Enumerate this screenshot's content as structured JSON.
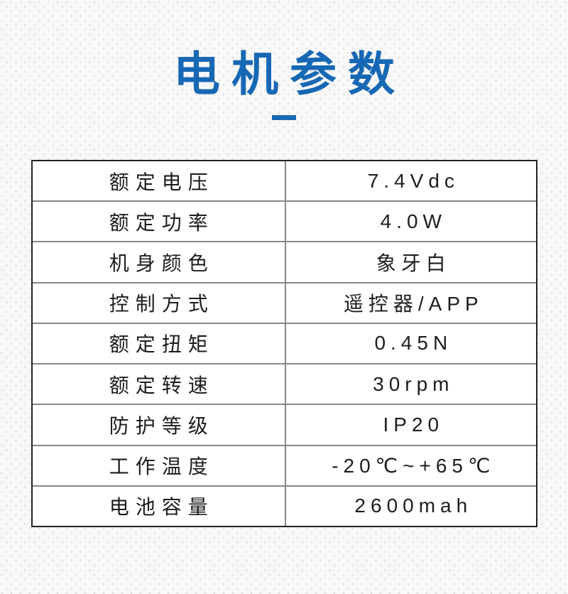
{
  "header": {
    "title": "电机参数"
  },
  "colors": {
    "accent_blue": "#1768b4",
    "table_outer_border": "#222222",
    "table_inner_border": "#878787",
    "text": "#1d1d1d",
    "background": "#f8f8f8",
    "background_dot": "#e2e2e4"
  },
  "table": {
    "rows": [
      {
        "label": "额定电压",
        "value": "7.4Vdc"
      },
      {
        "label": "额定功率",
        "value": "4.0W"
      },
      {
        "label": "机身颜色",
        "value": "象牙白"
      },
      {
        "label": "控制方式",
        "value": "遥控器/APP"
      },
      {
        "label": "额定扭矩",
        "value": "0.45N"
      },
      {
        "label": "额定转速",
        "value": "30rpm"
      },
      {
        "label": "防护等级",
        "value": "IP20"
      },
      {
        "label": "工作温度",
        "value": "-20℃~+65℃"
      },
      {
        "label": "电池容量",
        "value": "2600mah"
      }
    ]
  }
}
